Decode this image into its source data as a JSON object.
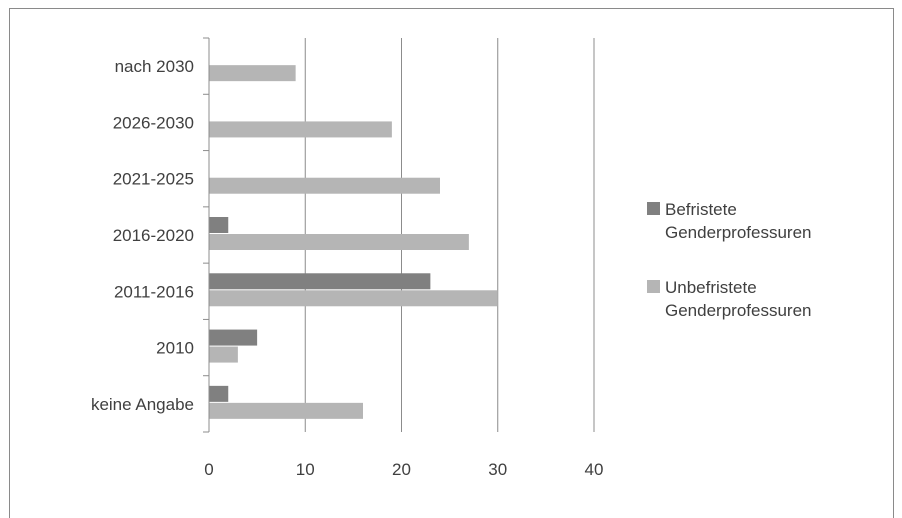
{
  "chart_data": {
    "type": "bar",
    "orientation": "horizontal",
    "categories": [
      "keine Angabe",
      "2010",
      "2011-2016",
      "2016-2020",
      "2021-2025",
      "2026-2030",
      "nach 2030"
    ],
    "series": [
      {
        "name": "Befristete Genderprofessuren",
        "legend_lines": [
          "Befristete",
          "Genderprofessuren"
        ],
        "color": "#808080",
        "values": [
          2,
          5,
          23,
          2,
          0,
          0,
          0
        ]
      },
      {
        "name": "Unbefristete Genderprofessuren",
        "legend_lines": [
          "Unbefristete",
          "Genderprofessuren"
        ],
        "color": "#b5b5b5",
        "values": [
          16,
          3,
          30,
          27,
          24,
          19,
          9
        ]
      }
    ],
    "xlim": [
      0,
      40
    ],
    "xticks": [
      "0",
      "10",
      "20",
      "30",
      "40"
    ],
    "grid": true,
    "legend_position": "right"
  }
}
